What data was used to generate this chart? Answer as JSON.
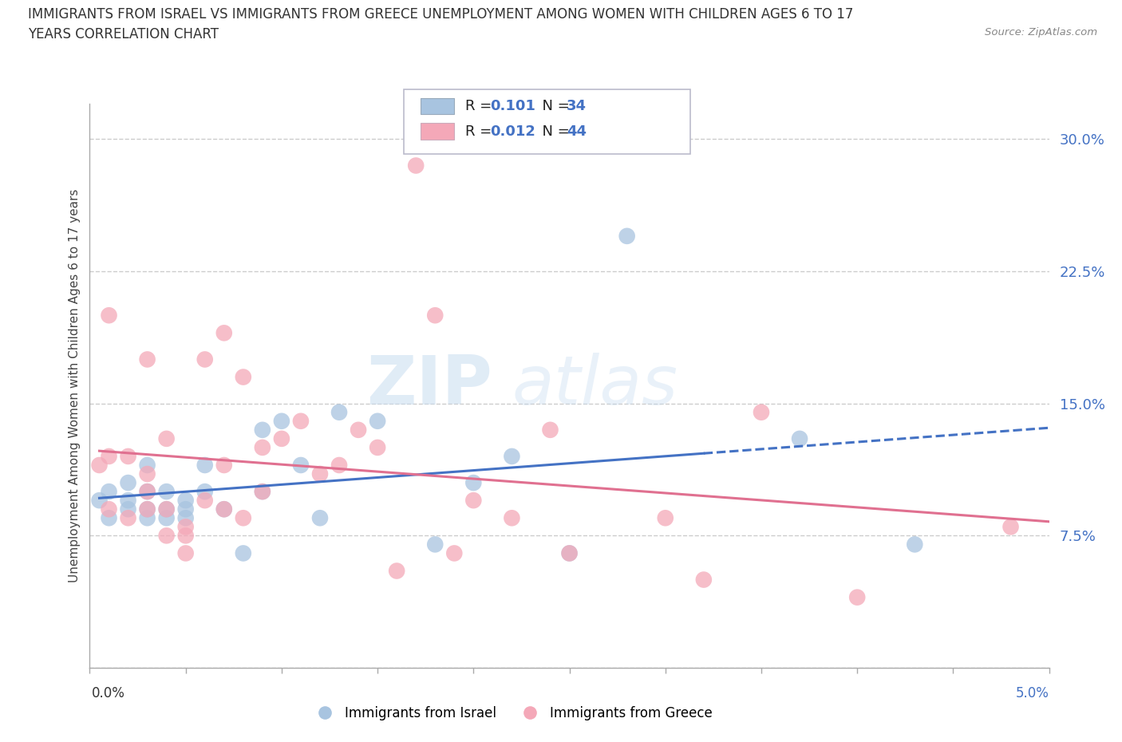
{
  "title_line1": "IMMIGRANTS FROM ISRAEL VS IMMIGRANTS FROM GREECE UNEMPLOYMENT AMONG WOMEN WITH CHILDREN AGES 6 TO 17",
  "title_line2": "YEARS CORRELATION CHART",
  "source": "Source: ZipAtlas.com",
  "ylabel": "Unemployment Among Women with Children Ages 6 to 17 years",
  "watermark_zip": "ZIP",
  "watermark_atlas": "atlas",
  "legend_israel_R": "0.101",
  "legend_israel_N": "34",
  "legend_greece_R": "0.012",
  "legend_greece_N": "44",
  "israel_color": "#a8c4e0",
  "greece_color": "#f4a8b8",
  "israel_line_color": "#4472c4",
  "greece_line_color": "#e07090",
  "label_color": "#4472c4",
  "background_color": "#ffffff",
  "grid_color": "#cccccc",
  "xlim": [
    0.0,
    0.05
  ],
  "ylim": [
    0.0,
    0.32
  ],
  "yticks": [
    0.0,
    0.075,
    0.15,
    0.225,
    0.3
  ],
  "ytick_labels": [
    "",
    "7.5%",
    "15.0%",
    "22.5%",
    "30.0%"
  ],
  "israel_x": [
    0.0005,
    0.001,
    0.001,
    0.002,
    0.002,
    0.002,
    0.003,
    0.003,
    0.003,
    0.003,
    0.004,
    0.004,
    0.004,
    0.005,
    0.005,
    0.005,
    0.006,
    0.006,
    0.007,
    0.008,
    0.009,
    0.009,
    0.01,
    0.011,
    0.012,
    0.013,
    0.015,
    0.018,
    0.02,
    0.022,
    0.025,
    0.028,
    0.037,
    0.043
  ],
  "israel_y": [
    0.095,
    0.085,
    0.1,
    0.09,
    0.095,
    0.105,
    0.085,
    0.09,
    0.1,
    0.115,
    0.085,
    0.09,
    0.1,
    0.085,
    0.09,
    0.095,
    0.1,
    0.115,
    0.09,
    0.065,
    0.1,
    0.135,
    0.14,
    0.115,
    0.085,
    0.145,
    0.14,
    0.07,
    0.105,
    0.12,
    0.065,
    0.245,
    0.13,
    0.07
  ],
  "greece_x": [
    0.0005,
    0.001,
    0.001,
    0.001,
    0.002,
    0.002,
    0.003,
    0.003,
    0.003,
    0.003,
    0.004,
    0.004,
    0.004,
    0.005,
    0.005,
    0.005,
    0.006,
    0.006,
    0.007,
    0.007,
    0.007,
    0.008,
    0.008,
    0.009,
    0.009,
    0.01,
    0.011,
    0.012,
    0.013,
    0.014,
    0.015,
    0.016,
    0.017,
    0.018,
    0.019,
    0.02,
    0.022,
    0.024,
    0.025,
    0.03,
    0.032,
    0.035,
    0.04,
    0.048
  ],
  "greece_y": [
    0.115,
    0.09,
    0.12,
    0.2,
    0.085,
    0.12,
    0.09,
    0.1,
    0.11,
    0.175,
    0.075,
    0.09,
    0.13,
    0.065,
    0.075,
    0.08,
    0.095,
    0.175,
    0.09,
    0.115,
    0.19,
    0.085,
    0.165,
    0.1,
    0.125,
    0.13,
    0.14,
    0.11,
    0.115,
    0.135,
    0.125,
    0.055,
    0.285,
    0.2,
    0.065,
    0.095,
    0.085,
    0.135,
    0.065,
    0.085,
    0.05,
    0.145,
    0.04,
    0.08
  ]
}
